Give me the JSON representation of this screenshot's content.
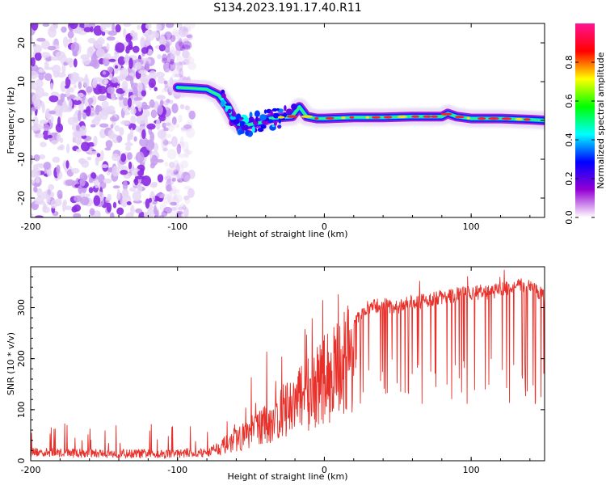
{
  "figure": {
    "title": "S134.2023.191.17.40.R11"
  },
  "chart_data": [
    {
      "type": "heatmap",
      "title": "",
      "xlabel": "Height of straight line (km)",
      "ylabel": "Frequency (Hz)",
      "xlim": [
        -200,
        150
      ],
      "ylim": [
        -25,
        25
      ],
      "x_ticks": [
        -200,
        -100,
        0,
        100
      ],
      "y_ticks": [
        -20,
        -10,
        0,
        10,
        20
      ],
      "x_tick_labels": [
        "-200",
        "-100",
        "0",
        "100"
      ],
      "y_tick_labels": [
        "-20",
        "-10",
        "0",
        "10",
        "20"
      ],
      "ridge": {
        "name": "",
        "x": [
          -100,
          -90,
          -80,
          -72,
          -66,
          -62,
          -57,
          -50,
          -43,
          -37,
          -30,
          -22,
          -17,
          -12,
          -5,
          0,
          20,
          40,
          60,
          80,
          84,
          90,
          100,
          120,
          140,
          150
        ],
        "y": [
          8.5,
          8.3,
          8.0,
          6.5,
          3.5,
          0.5,
          -1.5,
          -1.0,
          -0.5,
          0.5,
          0.8,
          1.0,
          3.5,
          1.0,
          0.5,
          0.5,
          0.8,
          0.8,
          1.0,
          1.0,
          1.8,
          1.0,
          0.5,
          0.5,
          0.2,
          0.0
        ]
      },
      "noise_region": {
        "x": [
          -200,
          -90
        ],
        "y": [
          -25,
          25
        ]
      },
      "colorbar": {
        "label": "Normalized spectral amplitude",
        "range": [
          0,
          1
        ],
        "ticks": [
          0.0,
          0.2,
          0.4,
          0.6,
          0.8
        ],
        "tick_labels": [
          "0.0",
          "0.2",
          "0.4",
          "0.6",
          "0.8"
        ],
        "colormap": [
          "#ffffff",
          "#9400d3",
          "#0000ff",
          "#00ffff",
          "#00ff00",
          "#ffff00",
          "#ff0000",
          "#ff1493"
        ]
      },
      "grid": false
    },
    {
      "type": "line",
      "title": "",
      "xlabel": "Height of straight line (km)",
      "ylabel": "SNR (10 * v/v)",
      "xlim": [
        -200,
        150
      ],
      "ylim": [
        0,
        380
      ],
      "x_ticks": [
        -200,
        -100,
        0,
        100
      ],
      "y_ticks": [
        0,
        100,
        200,
        300
      ],
      "x_tick_labels": [
        "-200",
        "-100",
        "0",
        "100"
      ],
      "y_tick_labels": [
        "0",
        "100",
        "200",
        "300"
      ],
      "color": "#e8302a",
      "series": [
        {
          "name": "",
          "x": [
            -200,
            -180,
            -160,
            -140,
            -120,
            -100,
            -90,
            -80,
            -70,
            -60,
            -50,
            -40,
            -30,
            -20,
            -10,
            0,
            10,
            20,
            30,
            40,
            50,
            60,
            70,
            80,
            90,
            100,
            110,
            120,
            130,
            140,
            150
          ],
          "y": [
            15,
            14,
            13,
            12,
            12,
            12,
            15,
            20,
            35,
            50,
            70,
            90,
            110,
            140,
            170,
            200,
            230,
            270,
            300,
            305,
            300,
            310,
            315,
            320,
            325,
            330,
            330,
            335,
            340,
            345,
            320
          ]
        }
      ],
      "grid": false
    }
  ]
}
